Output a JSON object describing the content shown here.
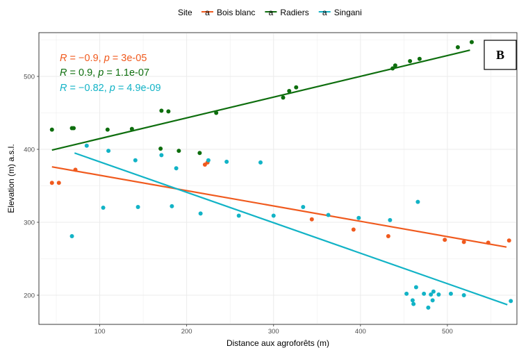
{
  "chart_data": {
    "type": "scatter",
    "title": "",
    "panel_label": "B",
    "xlabel": "Distance aux agroforêts (m)",
    "ylabel": "Elevation (m) a.s.l.",
    "xlim": [
      30,
      580
    ],
    "ylim": [
      160,
      560
    ],
    "x_ticks": [
      100,
      200,
      300,
      400,
      500
    ],
    "y_ticks": [
      200,
      300,
      400,
      500
    ],
    "grid": true,
    "legend": {
      "title": "Site",
      "position": "top",
      "glyph": "a"
    },
    "series": [
      {
        "name": "Bois blanc",
        "color": "#F05A1E",
        "points": [
          [
            45,
            354
          ],
          [
            53,
            354
          ],
          [
            72,
            372
          ],
          [
            221,
            379
          ],
          [
            224,
            382
          ],
          [
            344,
            304
          ],
          [
            392,
            290
          ],
          [
            432,
            281
          ],
          [
            497,
            276
          ],
          [
            519,
            273
          ],
          [
            547,
            272
          ],
          [
            571,
            275
          ]
        ],
        "fit": [
          [
            45,
            376
          ],
          [
            568,
            266
          ]
        ],
        "stat": {
          "R": "−0.9",
          "p": "3e-05"
        }
      },
      {
        "name": "Radiers",
        "color": "#0E6E0E",
        "points": [
          [
            45,
            427
          ],
          [
            68,
            429
          ],
          [
            70,
            429
          ],
          [
            109,
            427
          ],
          [
            137,
            428
          ],
          [
            170,
            401
          ],
          [
            171,
            453
          ],
          [
            179,
            452
          ],
          [
            191,
            398
          ],
          [
            215,
            395
          ],
          [
            234,
            450
          ],
          [
            311,
            471
          ],
          [
            318,
            480
          ],
          [
            326,
            485
          ],
          [
            437,
            511
          ],
          [
            440,
            515
          ],
          [
            457,
            521
          ],
          [
            468,
            524
          ],
          [
            512,
            540
          ],
          [
            528,
            547
          ]
        ],
        "fit": [
          [
            45,
            399
          ],
          [
            526,
            536
          ]
        ],
        "stat": {
          "R": "0.9",
          "p": "1.1e-07"
        }
      },
      {
        "name": "Singani",
        "color": "#12B3C6",
        "points": [
          [
            68,
            281
          ],
          [
            85,
            405
          ],
          [
            104,
            320
          ],
          [
            110,
            398
          ],
          [
            141,
            385
          ],
          [
            144,
            321
          ],
          [
            171,
            392
          ],
          [
            183,
            322
          ],
          [
            188,
            374
          ],
          [
            216,
            312
          ],
          [
            225,
            385
          ],
          [
            246,
            383
          ],
          [
            260,
            309
          ],
          [
            285,
            382
          ],
          [
            300,
            309
          ],
          [
            334,
            321
          ],
          [
            363,
            310
          ],
          [
            398,
            306
          ],
          [
            434,
            303
          ],
          [
            453,
            202
          ],
          [
            460,
            193
          ],
          [
            461,
            188
          ],
          [
            464,
            211
          ],
          [
            466,
            328
          ],
          [
            473,
            202
          ],
          [
            478,
            183
          ],
          [
            481,
            201
          ],
          [
            483,
            193
          ],
          [
            484,
            205
          ],
          [
            490,
            201
          ],
          [
            504,
            202
          ],
          [
            519,
            200
          ],
          [
            573,
            192
          ]
        ],
        "fit": [
          [
            71,
            395
          ],
          [
            569,
            187
          ]
        ],
        "stat": {
          "R": "−0.82",
          "p": "4.9e-09"
        }
      }
    ]
  }
}
